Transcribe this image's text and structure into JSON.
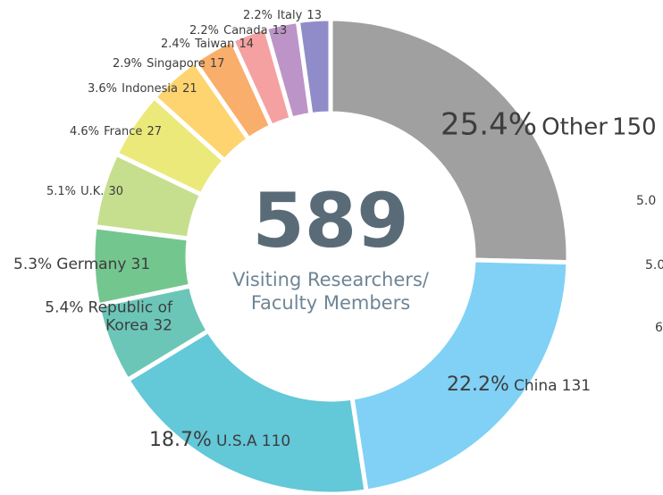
{
  "chart_data": {
    "type": "donut",
    "center_value": 589,
    "center_label": "Visiting Researchers/ Faculty Members",
    "categories": [
      "Other",
      "China",
      "U.S.A",
      "Republic of Korea",
      "Germany",
      "U.K.",
      "France",
      "Indonesia",
      "Singapore",
      "Taiwan",
      "Canada",
      "Italy"
    ],
    "values": [
      25.4,
      22.2,
      18.7,
      5.4,
      5.3,
      5.1,
      4.6,
      3.6,
      2.9,
      2.4,
      2.2,
      2.2
    ],
    "value_labels": [
      "25.4%",
      "22.2%",
      "18.7%",
      "5.4%",
      "5.3%",
      "5.1%",
      "4.6%",
      "3.6%",
      "2.9%",
      "2.4%",
      "2.2%",
      "2.2%"
    ],
    "counts": [
      150,
      131,
      110,
      32,
      31,
      30,
      27,
      21,
      17,
      14,
      13,
      13
    ],
    "colors": [
      "#a0a0a0",
      "#80d1f5",
      "#63c8d8",
      "#6bc6b8",
      "#74c68f",
      "#c6df8f",
      "#ece97b",
      "#fdd46f",
      "#f9ae6b",
      "#f5a1a1",
      "#bd94c8",
      "#908cca"
    ],
    "cut_off_labels": [
      "5.0",
      "5.0",
      "6"
    ]
  }
}
